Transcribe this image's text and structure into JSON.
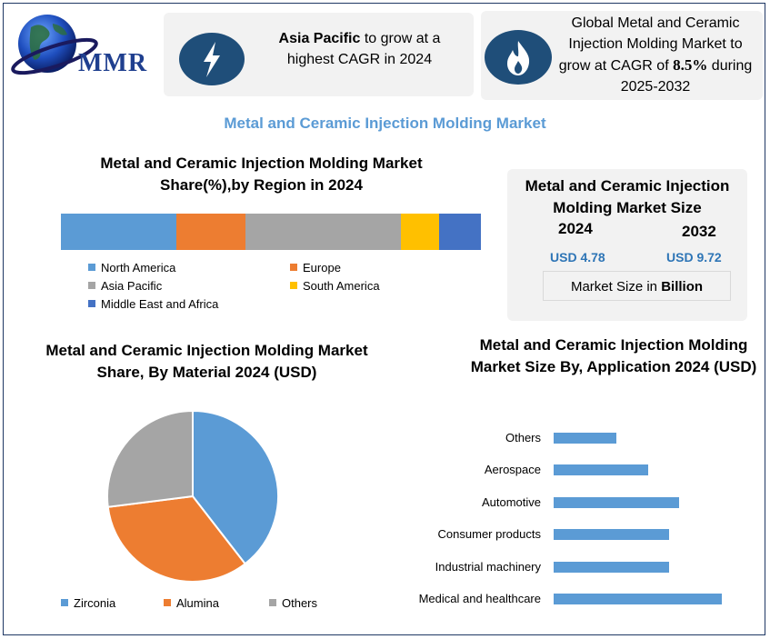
{
  "brand": {
    "logo_text": "MMR"
  },
  "highlights": {
    "growth_region": "Asia Pacific",
    "growth_text": "to grow at a highest CAGR in 2024",
    "market_line": "Global Metal and Ceramic Injection Molding Market to grow at CAGR of",
    "cagr": "8.5%",
    "period_prefix": "during",
    "period": "2025-2032",
    "icons": [
      "lightning-icon",
      "flame-icon"
    ]
  },
  "main_title": "Metal and Ceramic Injection Molding Market",
  "market_size": {
    "title": "Metal and Ceramic Injection Molding Market Size",
    "year_start": "2024",
    "year_end": "2032",
    "value_start": "USD 4.78",
    "value_end": "USD 9.72",
    "unit_prefix": "Market Size in",
    "unit_bold": "Billion"
  },
  "colors": {
    "accent": "#5b9bd5",
    "dark_badge": "#1f4e79",
    "value_text": "#2e75b6"
  },
  "chart_data": [
    {
      "type": "bar",
      "title": "Metal and Ceramic Injection Molding Market Share(%),by Region in 2024",
      "orientation": "horizontal-stacked",
      "series": [
        {
          "name": "North America",
          "value": 27.5,
          "color": "#5b9bd5"
        },
        {
          "name": "Europe",
          "value": 16.5,
          "color": "#ed7d31"
        },
        {
          "name": "Asia Pacific",
          "value": 37,
          "color": "#a5a5a5"
        },
        {
          "name": "South America",
          "value": 9,
          "color": "#ffc000"
        },
        {
          "name": "Middle East and Africa",
          "value": 10,
          "color": "#4472c4"
        }
      ],
      "legend_position": "bottom"
    },
    {
      "type": "pie",
      "title": "Metal and Ceramic Injection Molding Market Share, By  Material 2024  (USD)",
      "slices": [
        {
          "name": "Zirconia",
          "value": 39.5,
          "color": "#5b9bd5"
        },
        {
          "name": "Alumina",
          "value": 33.5,
          "color": "#ed7d31"
        },
        {
          "name": "Others",
          "value": 27,
          "color": "#a5a5a5"
        }
      ],
      "legend_position": "bottom"
    },
    {
      "type": "bar",
      "title": "Metal and Ceramic Injection Molding Market Size By, Application 2024  (USD)",
      "orientation": "horizontal",
      "categories": [
        "Others",
        "Aerospace",
        "Automotive",
        "Consumer products",
        "Industrial machinery",
        "Medical and healthcare"
      ],
      "values": [
        68,
        103,
        137,
        126,
        126,
        183
      ],
      "xlim": [
        0,
        200
      ],
      "axis_labels_visible": false,
      "color": "#5b9bd5"
    }
  ]
}
